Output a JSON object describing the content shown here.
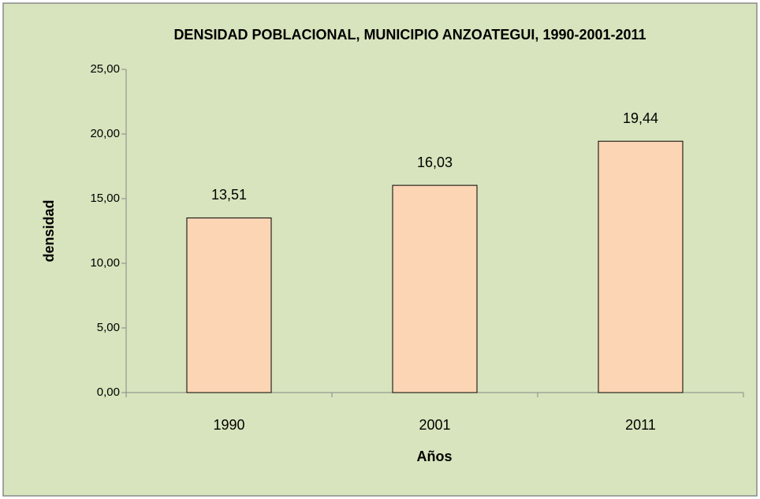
{
  "chart_data": {
    "type": "bar",
    "title": "DENSIDAD POBLACIONAL, MUNICIPIO ANZOATEGUI, 1990-2001-2011",
    "x_label": "Años",
    "y_label": "densidad",
    "categories": [
      "1990",
      "2001",
      "2011"
    ],
    "values": [
      13.51,
      16.03,
      19.44
    ],
    "value_labels": [
      "13,51",
      "16,03",
      "19,44"
    ],
    "color": "#fcd5b5",
    "ylim": [
      0,
      25
    ],
    "yticks": [
      {
        "value": 0,
        "label": "0,00"
      },
      {
        "value": 5,
        "label": "5,00"
      },
      {
        "value": 10,
        "label": "10,00"
      },
      {
        "value": 15,
        "label": "15,00"
      },
      {
        "value": 20,
        "label": "20,00"
      },
      {
        "value": 25,
        "label": "25,00"
      }
    ],
    "grid": false
  }
}
